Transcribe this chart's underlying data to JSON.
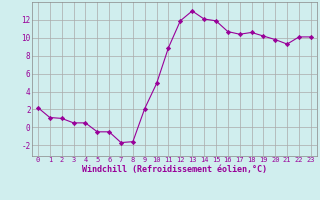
{
  "x": [
    0,
    1,
    2,
    3,
    4,
    5,
    6,
    7,
    8,
    9,
    10,
    11,
    12,
    13,
    14,
    15,
    16,
    17,
    18,
    19,
    20,
    21,
    22,
    23
  ],
  "y": [
    2.2,
    1.1,
    1.0,
    0.5,
    0.5,
    -0.5,
    -0.5,
    -1.7,
    -1.6,
    2.1,
    4.9,
    8.9,
    11.9,
    13.0,
    12.1,
    11.9,
    10.7,
    10.4,
    10.6,
    10.2,
    9.8,
    9.3,
    10.1,
    10.1
  ],
  "line_color": "#990099",
  "marker": "D",
  "marker_size": 2.2,
  "bg_color": "#d0eeee",
  "grid_color": "#aaaaaa",
  "xlabel": "Windchill (Refroidissement éolien,°C)",
  "xlabel_color": "#990099",
  "tick_color": "#990099",
  "yticks": [
    -2,
    0,
    2,
    4,
    6,
    8,
    10,
    12
  ],
  "ylim": [
    -3.2,
    14.0
  ],
  "xlim": [
    -0.5,
    23.5
  ],
  "xtick_fontsize": 5.0,
  "ytick_fontsize": 5.5,
  "xlabel_fontsize": 6.0
}
